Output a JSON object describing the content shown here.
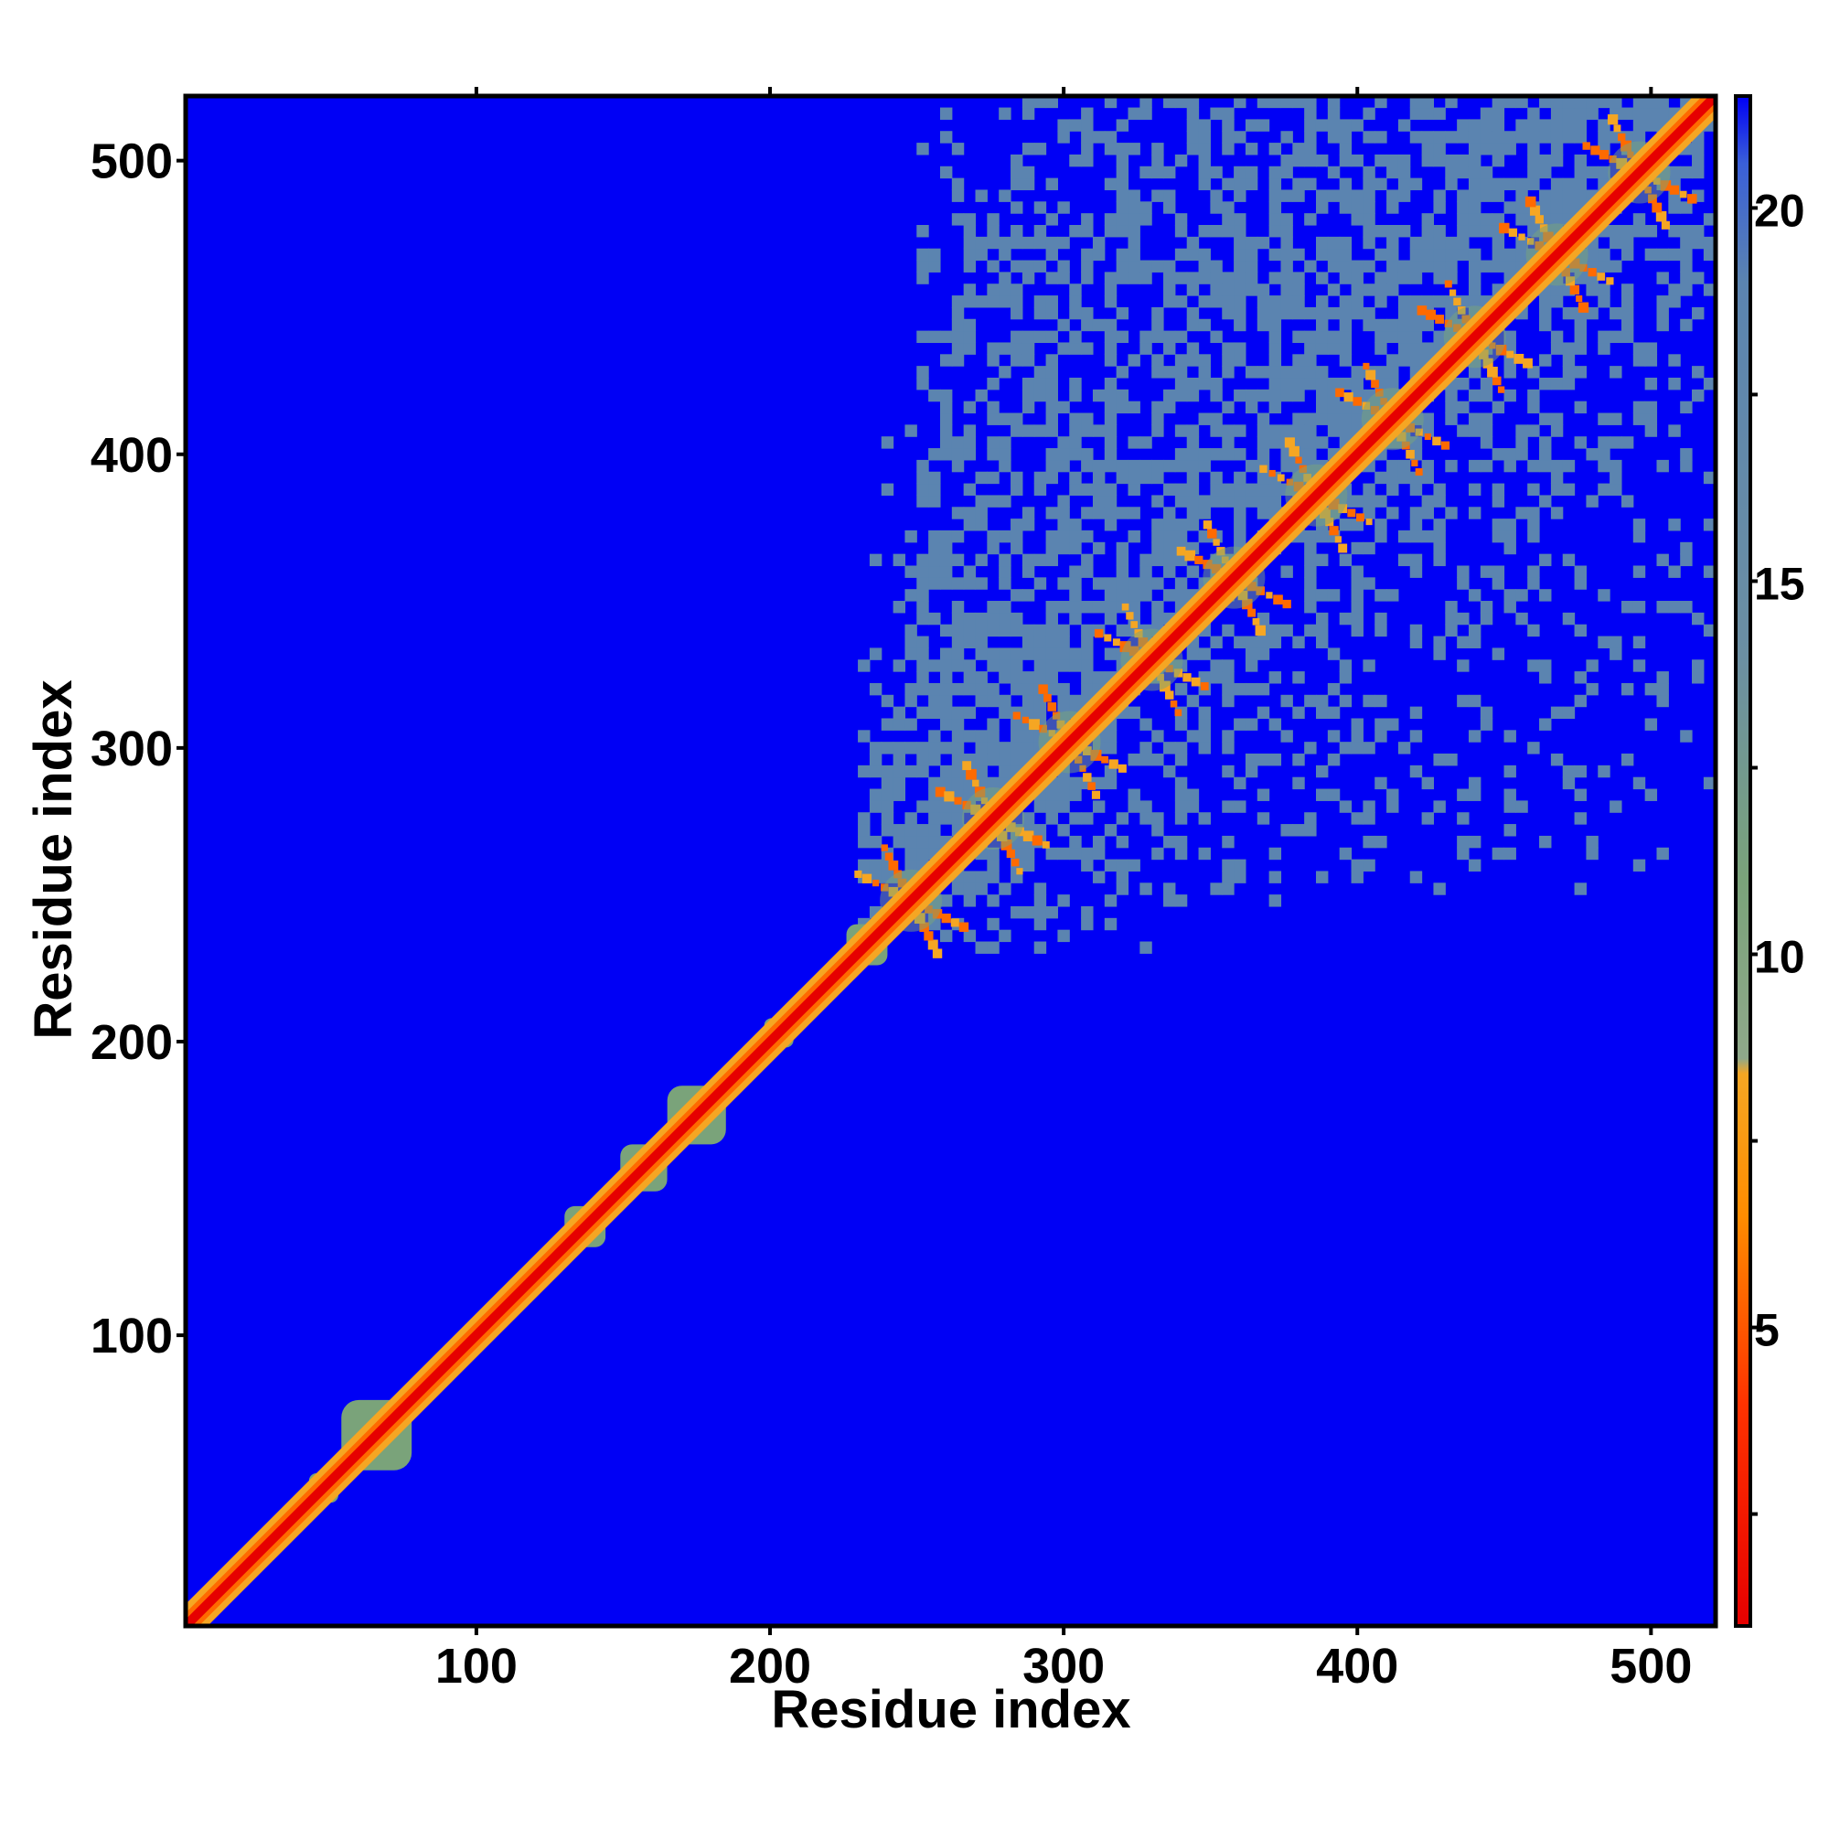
{
  "chart_data": {
    "type": "heatmap",
    "title": "",
    "xlabel": "Residue index",
    "ylabel": "Residue index",
    "xlim": [
      1,
      522
    ],
    "ylim": [
      1,
      522
    ],
    "x_ticks": [
      100,
      200,
      300,
      400,
      500
    ],
    "y_ticks": [
      100,
      200,
      300,
      400,
      500
    ],
    "x_tick_labels": [
      "100",
      "200",
      "300",
      "400",
      "500"
    ],
    "y_tick_labels": [
      "100",
      "200",
      "300",
      "400",
      "500"
    ],
    "colorbar": {
      "range": [
        1,
        21.5
      ],
      "ticks": [
        5,
        10,
        15,
        20
      ],
      "tick_labels": [
        "5",
        "10",
        "15",
        "20"
      ],
      "colors": [
        "#e60000",
        "#ff6a00",
        "#f5a623",
        "#7aa37a",
        "#5b84b0",
        "#0000f5"
      ]
    },
    "background_value": 21,
    "background_color": "#0000f5",
    "diagonal_value": 1,
    "diagonal_color": "#e60000",
    "contact_region": {
      "description_free": true,
      "residue_start": 232,
      "residue_end": 522,
      "value": 18,
      "color": "#5b84b0",
      "repeat_period": 28,
      "repeat_centers": [
        248,
        276,
        302,
        330,
        358,
        386,
        412,
        440,
        468,
        496
      ]
    },
    "diagonal_blobs": [
      {
        "center": 66,
        "half_width": 12,
        "value": 15
      },
      {
        "center": 48,
        "half_width": 5,
        "value": 15
      },
      {
        "center": 137,
        "half_width": 7,
        "value": 15
      },
      {
        "center": 157,
        "half_width": 8,
        "value": 15
      },
      {
        "center": 175,
        "half_width": 10,
        "value": 15
      },
      {
        "center": 203,
        "half_width": 5,
        "value": 15
      },
      {
        "center": 233,
        "half_width": 7,
        "value": 15
      }
    ],
    "grid": false,
    "legend": "none"
  }
}
